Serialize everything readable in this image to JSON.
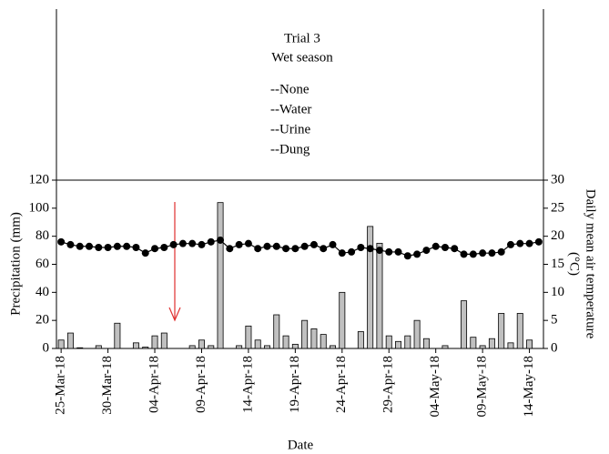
{
  "chart_data": {
    "type": "bar",
    "title": "Trial 3",
    "subtitle": "Wet season",
    "legend_text": [
      "--None",
      "--Water",
      "--Urine",
      "--Dung"
    ],
    "xlabel": "Date",
    "ylabel": "Precipitation (mm)",
    "y2label": [
      "Daily mean air temperature",
      "(°C)"
    ],
    "categories": [
      "25-Mar-18",
      null,
      null,
      null,
      null,
      "30-Mar-18",
      null,
      null,
      null,
      null,
      "04-Apr-18",
      null,
      null,
      null,
      null,
      "09-Apr-18",
      null,
      null,
      null,
      null,
      "14-Apr-18",
      null,
      null,
      null,
      null,
      "19-Apr-18",
      null,
      null,
      null,
      null,
      "24-Apr-18",
      null,
      null,
      null,
      null,
      "29-Apr-18",
      null,
      null,
      null,
      null,
      "04-May-18",
      null,
      null,
      null,
      null,
      "09-May-18",
      null,
      null,
      null,
      null,
      "14-May-18",
      null
    ],
    "series": [
      {
        "type": "bar",
        "color": "#c0c0c0",
        "values": [
          6,
          11,
          0.5,
          0,
          2,
          0,
          18,
          0,
          4,
          1,
          9,
          11,
          0,
          0,
          2,
          6,
          2,
          104,
          0,
          2,
          16,
          6,
          2,
          24,
          9,
          3,
          20,
          14,
          10,
          2,
          40,
          0,
          12,
          87,
          75,
          9,
          5,
          9,
          20,
          7,
          0,
          2,
          0,
          34,
          8,
          2,
          7,
          25,
          4,
          25,
          6,
          0
        ]
      },
      {
        "type": "line",
        "color": "#000000",
        "axis": "y2",
        "values": [
          19,
          18.5,
          18.2,
          18.2,
          18,
          18,
          18.2,
          18.2,
          18,
          17,
          17.8,
          18,
          18.5,
          18.7,
          18.7,
          18.5,
          19,
          19.3,
          17.8,
          18.5,
          18.7,
          17.8,
          18.2,
          18.2,
          17.8,
          17.8,
          18.2,
          18.5,
          17.8,
          18.5,
          17,
          17.2,
          18,
          17.8,
          17.5,
          17.2,
          17.2,
          16.5,
          16.8,
          17.5,
          18.2,
          18,
          17.8,
          16.8,
          16.8,
          17,
          17,
          17.2,
          18.5,
          18.7,
          18.7,
          19
        ]
      }
    ],
    "ylim": [
      0,
      120
    ],
    "yticks": [
      0,
      20,
      40,
      60,
      80,
      100,
      120
    ],
    "y2lim": [
      0,
      30
    ],
    "y2ticks": [
      0,
      5,
      10,
      15,
      20,
      25,
      30
    ],
    "grid": false
  }
}
